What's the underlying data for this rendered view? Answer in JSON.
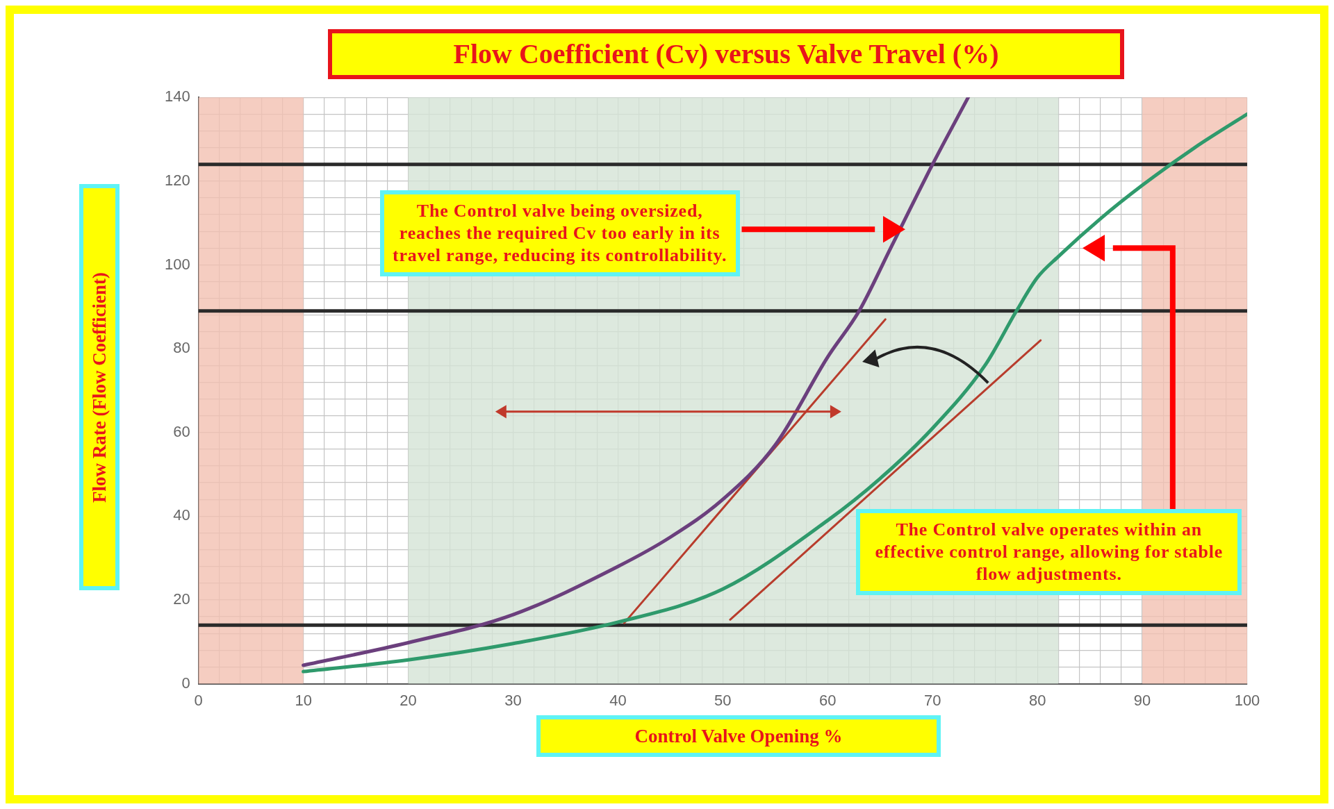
{
  "chart_data": {
    "type": "line",
    "title": "Flow Coefficient (Cv) versus Valve Travel (%)",
    "xlabel": "Control Valve Opening %",
    "ylabel": "Flow Rate (Flow Coefficient)",
    "annotations": [
      "The Control valve being oversized, reaches the required Cv too early in its travel range, reducing its controllability.",
      "The Control valve operates within an effective control range, allowing for stable flow adjustments."
    ],
    "series": [
      {
        "color": "#6b3f7d",
        "x": [
          10,
          20,
          30,
          40,
          45,
          50,
          55,
          60,
          63,
          66,
          70,
          73.4
        ],
        "values": [
          4.4,
          9.8,
          16.5,
          28,
          35,
          44,
          57,
          78,
          89,
          104,
          124,
          140
        ]
      },
      {
        "color": "#2f9a6c",
        "x": [
          10,
          20,
          30,
          40,
          50,
          60,
          65,
          70,
          75,
          78,
          80,
          82,
          86,
          90,
          95,
          100
        ],
        "values": [
          2.9,
          5.7,
          9.6,
          14.7,
          22.6,
          39,
          49,
          61,
          76,
          89,
          97,
          102,
          111,
          119,
          128,
          136
        ]
      },
      {
        "color": "#b83c2c",
        "x": [
          40.6,
          65.5
        ],
        "values": [
          14.5,
          87
        ]
      },
      {
        "color": "#b83c2c",
        "x": [
          50.7,
          80.3
        ],
        "values": [
          15.3,
          82
        ]
      }
    ],
    "xlim": [
      0,
      100
    ],
    "xticks": [
      0,
      {
        "value": 2,
        "label": null
      },
      {
        "value": 4,
        "label": null
      },
      {
        "value": 6,
        "label": null
      },
      {
        "value": 8,
        "label": null
      },
      10,
      {
        "value": 12,
        "label": null
      },
      {
        "value": 14,
        "label": null
      },
      {
        "value": 16,
        "label": null
      },
      {
        "value": 18,
        "label": null
      },
      20,
      {
        "value": 22,
        "label": null
      },
      {
        "value": 24,
        "label": null
      },
      {
        "value": 26,
        "label": null
      },
      {
        "value": 28,
        "label": null
      },
      30,
      {
        "value": 32,
        "label": null
      },
      {
        "value": 34,
        "label": null
      },
      {
        "value": 36,
        "label": null
      },
      {
        "value": 38,
        "label": null
      },
      40,
      {
        "value": 42,
        "label": null
      },
      {
        "value": 44,
        "label": null
      },
      {
        "value": 46,
        "label": null
      },
      {
        "value": 48,
        "label": null
      },
      50,
      {
        "value": 52,
        "label": null
      },
      {
        "value": 54,
        "label": null
      },
      {
        "value": 56,
        "label": null
      },
      {
        "value": 58,
        "label": null
      },
      60,
      {
        "value": 62,
        "label": null
      },
      {
        "value": 64,
        "label": null
      },
      {
        "value": 66,
        "label": null
      },
      {
        "value": 68,
        "label": null
      },
      70,
      {
        "value": 72,
        "label": null
      },
      {
        "value": 74,
        "label": null
      },
      {
        "value": 76,
        "label": null
      },
      {
        "value": 78,
        "label": null
      },
      80,
      {
        "value": 82,
        "label": null
      },
      {
        "value": 84,
        "label": null
      },
      {
        "value": 86,
        "label": null
      },
      {
        "value": 88,
        "label": null
      },
      90,
      {
        "value": 92,
        "label": null
      },
      {
        "value": 94,
        "label": null
      },
      {
        "value": 96,
        "label": null
      },
      {
        "value": 98,
        "label": null
      },
      100
    ],
    "ylim": [
      0,
      140
    ],
    "yticks": [
      0,
      {
        "value": 4,
        "label": null
      },
      {
        "value": 8,
        "label": null
      },
      {
        "value": 12,
        "label": null
      },
      {
        "value": 16,
        "label": null
      },
      20,
      {
        "value": 24,
        "label": null
      },
      {
        "value": 28,
        "label": null
      },
      {
        "value": 32,
        "label": null
      },
      {
        "value": 36,
        "label": null
      },
      40,
      {
        "value": 44,
        "label": null
      },
      {
        "value": 48,
        "label": null
      },
      {
        "value": 52,
        "label": null
      },
      {
        "value": 56,
        "label": null
      },
      60,
      {
        "value": 64,
        "label": null
      },
      {
        "value": 68,
        "label": null
      },
      {
        "value": 72,
        "label": null
      },
      {
        "value": 76,
        "label": null
      },
      80,
      {
        "value": 84,
        "label": null
      },
      {
        "value": 88,
        "label": null
      },
      {
        "value": 92,
        "label": null
      },
      {
        "value": 96,
        "label": null
      },
      100,
      {
        "value": 104,
        "label": null
      },
      {
        "value": 108,
        "label": null
      },
      {
        "value": 112,
        "label": null
      },
      {
        "value": 116,
        "label": null
      },
      120,
      {
        "value": 124,
        "label": null
      },
      {
        "value": 128,
        "label": null
      },
      {
        "value": 132,
        "label": null
      },
      {
        "value": 136,
        "label": null
      },
      140
    ],
    "bands": [
      {
        "axis": "x",
        "from": 0,
        "to": 10,
        "color": "#f2c0b2"
      },
      {
        "axis": "x",
        "from": 90,
        "to": 100,
        "color": "#f2c0b2"
      },
      {
        "axis": "x",
        "from": 20,
        "to": 82,
        "color": "#d5e3d6"
      }
    ],
    "ref_lines": [
      {
        "axis": "y",
        "value": 124,
        "color": "#2a2a2a"
      },
      {
        "axis": "y",
        "value": 89,
        "color": "#2a2a2a"
      },
      {
        "axis": "y",
        "value": 14,
        "color": "#2a2a2a"
      }
    ],
    "grid": true,
    "legend": false,
    "marker": "none",
    "line_style": "solid"
  }
}
